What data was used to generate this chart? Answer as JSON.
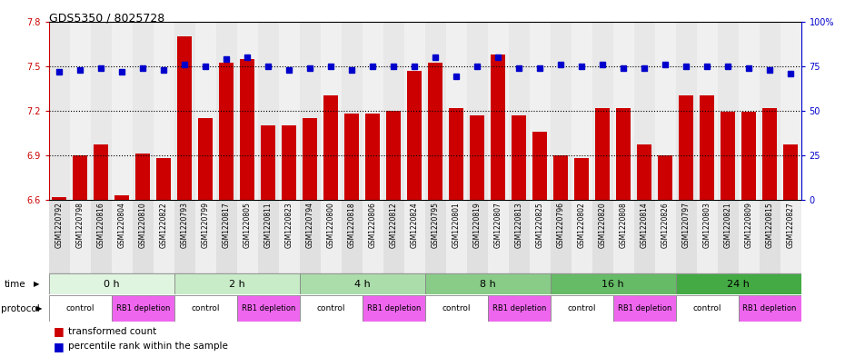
{
  "title": "GDS5350 / 8025728",
  "samples": [
    "GSM1220792",
    "GSM1220798",
    "GSM1220816",
    "GSM1220804",
    "GSM1220810",
    "GSM1220822",
    "GSM1220793",
    "GSM1220799",
    "GSM1220817",
    "GSM1220805",
    "GSM1220811",
    "GSM1220823",
    "GSM1220794",
    "GSM1220800",
    "GSM1220818",
    "GSM1220806",
    "GSM1220812",
    "GSM1220824",
    "GSM1220795",
    "GSM1220801",
    "GSM1220819",
    "GSM1220807",
    "GSM1220813",
    "GSM1220825",
    "GSM1220796",
    "GSM1220802",
    "GSM1220820",
    "GSM1220808",
    "GSM1220814",
    "GSM1220826",
    "GSM1220797",
    "GSM1220803",
    "GSM1220821",
    "GSM1220809",
    "GSM1220815",
    "GSM1220827"
  ],
  "bar_values": [
    6.62,
    6.9,
    6.97,
    6.63,
    6.91,
    6.88,
    7.7,
    7.15,
    7.52,
    7.55,
    7.1,
    7.1,
    7.15,
    7.3,
    7.18,
    7.18,
    7.2,
    7.47,
    7.52,
    7.22,
    7.17,
    7.58,
    7.17,
    7.06,
    6.9,
    6.88,
    7.22,
    7.22,
    6.97,
    6.9,
    7.3,
    7.3,
    7.19,
    7.19,
    7.22,
    6.97
  ],
  "dot_values": [
    72,
    73,
    74,
    72,
    74,
    73,
    76,
    75,
    79,
    80,
    75,
    73,
    74,
    75,
    73,
    75,
    75,
    75,
    80,
    69,
    75,
    80,
    74,
    74,
    76,
    75,
    76,
    74,
    74,
    76,
    75,
    75,
    75,
    74,
    73,
    71
  ],
  "time_labels": [
    "0 h",
    "2 h",
    "4 h",
    "8 h",
    "16 h",
    "24 h"
  ],
  "time_greens": [
    "#e0f5e0",
    "#c8ecc8",
    "#aaddaa",
    "#88cc88",
    "#66bb66",
    "#44aa44"
  ],
  "bar_color": "#cc0000",
  "dot_color": "#0000cc",
  "control_color": "#ffffff",
  "depletion_color": "#ee66ee",
  "ylim_left": [
    6.6,
    7.8
  ],
  "ylim_right": [
    0,
    100
  ],
  "yticks_left": [
    6.6,
    6.9,
    7.2,
    7.5,
    7.8
  ],
  "yticks_right": [
    0,
    25,
    50,
    75,
    100
  ],
  "gridlines": [
    6.9,
    7.2,
    7.5
  ],
  "n_groups": 6,
  "group_size": 6
}
